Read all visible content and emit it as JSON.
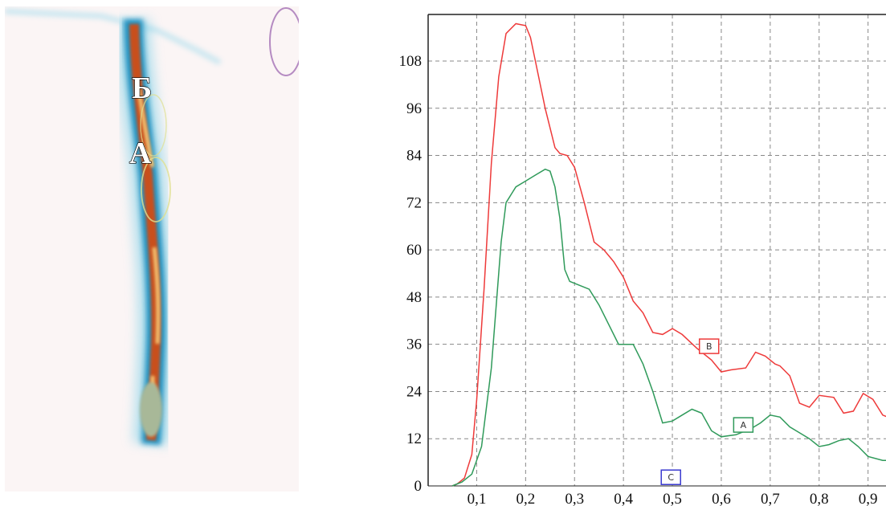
{
  "heatmap": {
    "region_labels": [
      "Б",
      "А"
    ],
    "colors": {
      "background": "#fbf5f5",
      "halo": "#7fd0e8",
      "cold": "#1f8fbf",
      "warm": "#c8501e",
      "hot": "#f2c070",
      "core": "#a8b898"
    }
  },
  "chart_data": {
    "type": "line",
    "xlim": [
      0.0,
      1.0
    ],
    "ylim": [
      0,
      120
    ],
    "x_ticks": [
      "0,1",
      "0,2",
      "0,3",
      "0,4",
      "0,5",
      "0,6",
      "0,7",
      "0,8",
      "0,9"
    ],
    "y_ticks": [
      "0",
      "12",
      "24",
      "36",
      "48",
      "60",
      "72",
      "84",
      "96",
      "108"
    ],
    "grid": true,
    "series": [
      {
        "name": "B",
        "color": "#ee3a3a",
        "marker_label": "B",
        "marker_at": [
          0.575,
          35.5
        ],
        "points": [
          [
            0.05,
            0
          ],
          [
            0.06,
            0.5
          ],
          [
            0.075,
            2
          ],
          [
            0.09,
            8
          ],
          [
            0.1,
            22
          ],
          [
            0.115,
            50
          ],
          [
            0.13,
            82
          ],
          [
            0.145,
            104
          ],
          [
            0.16,
            115
          ],
          [
            0.18,
            117.5
          ],
          [
            0.2,
            117
          ],
          [
            0.21,
            114
          ],
          [
            0.22,
            108
          ],
          [
            0.24,
            96
          ],
          [
            0.26,
            86
          ],
          [
            0.27,
            84.5
          ],
          [
            0.285,
            84
          ],
          [
            0.3,
            81
          ],
          [
            0.32,
            72
          ],
          [
            0.34,
            62
          ],
          [
            0.36,
            60
          ],
          [
            0.38,
            57
          ],
          [
            0.4,
            53
          ],
          [
            0.42,
            47
          ],
          [
            0.44,
            44
          ],
          [
            0.46,
            39
          ],
          [
            0.48,
            38.5
          ],
          [
            0.5,
            40
          ],
          [
            0.52,
            38.5
          ],
          [
            0.55,
            35
          ],
          [
            0.58,
            32
          ],
          [
            0.6,
            29
          ],
          [
            0.62,
            29.5
          ],
          [
            0.65,
            30
          ],
          [
            0.67,
            34
          ],
          [
            0.69,
            33
          ],
          [
            0.71,
            31
          ],
          [
            0.72,
            30.5
          ],
          [
            0.74,
            28
          ],
          [
            0.76,
            21
          ],
          [
            0.78,
            20
          ],
          [
            0.8,
            23
          ],
          [
            0.83,
            22.5
          ],
          [
            0.85,
            18.5
          ],
          [
            0.87,
            19
          ],
          [
            0.89,
            23.5
          ],
          [
            0.91,
            22
          ],
          [
            0.93,
            18
          ],
          [
            0.95,
            17
          ]
        ]
      },
      {
        "name": "A",
        "color": "#2f9a5a",
        "marker_label": "A",
        "marker_at": [
          0.645,
          15.5
        ],
        "points": [
          [
            0.05,
            0
          ],
          [
            0.07,
            1
          ],
          [
            0.09,
            3
          ],
          [
            0.11,
            10
          ],
          [
            0.13,
            30
          ],
          [
            0.15,
            62
          ],
          [
            0.16,
            72
          ],
          [
            0.18,
            76
          ],
          [
            0.2,
            77.5
          ],
          [
            0.22,
            79
          ],
          [
            0.24,
            80.5
          ],
          [
            0.25,
            80
          ],
          [
            0.26,
            76
          ],
          [
            0.27,
            68
          ],
          [
            0.28,
            55
          ],
          [
            0.29,
            52
          ],
          [
            0.31,
            51
          ],
          [
            0.33,
            50
          ],
          [
            0.35,
            46
          ],
          [
            0.37,
            41
          ],
          [
            0.39,
            36
          ],
          [
            0.42,
            36
          ],
          [
            0.44,
            31
          ],
          [
            0.46,
            24
          ],
          [
            0.48,
            16
          ],
          [
            0.5,
            16.5
          ],
          [
            0.52,
            18
          ],
          [
            0.54,
            19.5
          ],
          [
            0.56,
            18.5
          ],
          [
            0.58,
            14
          ],
          [
            0.6,
            12.5
          ],
          [
            0.63,
            13
          ],
          [
            0.66,
            14.5
          ],
          [
            0.68,
            16
          ],
          [
            0.7,
            18
          ],
          [
            0.72,
            17.5
          ],
          [
            0.74,
            15
          ],
          [
            0.76,
            13.5
          ],
          [
            0.78,
            12
          ],
          [
            0.8,
            10
          ],
          [
            0.82,
            10.5
          ],
          [
            0.84,
            11.5
          ],
          [
            0.86,
            12
          ],
          [
            0.88,
            10
          ],
          [
            0.9,
            7.5
          ],
          [
            0.93,
            6.5
          ],
          [
            0.95,
            6.5
          ]
        ]
      }
    ],
    "markers": [
      {
        "label": "C",
        "x": 0.497,
        "y": 2.2,
        "color": "#3a3ad0"
      }
    ]
  }
}
